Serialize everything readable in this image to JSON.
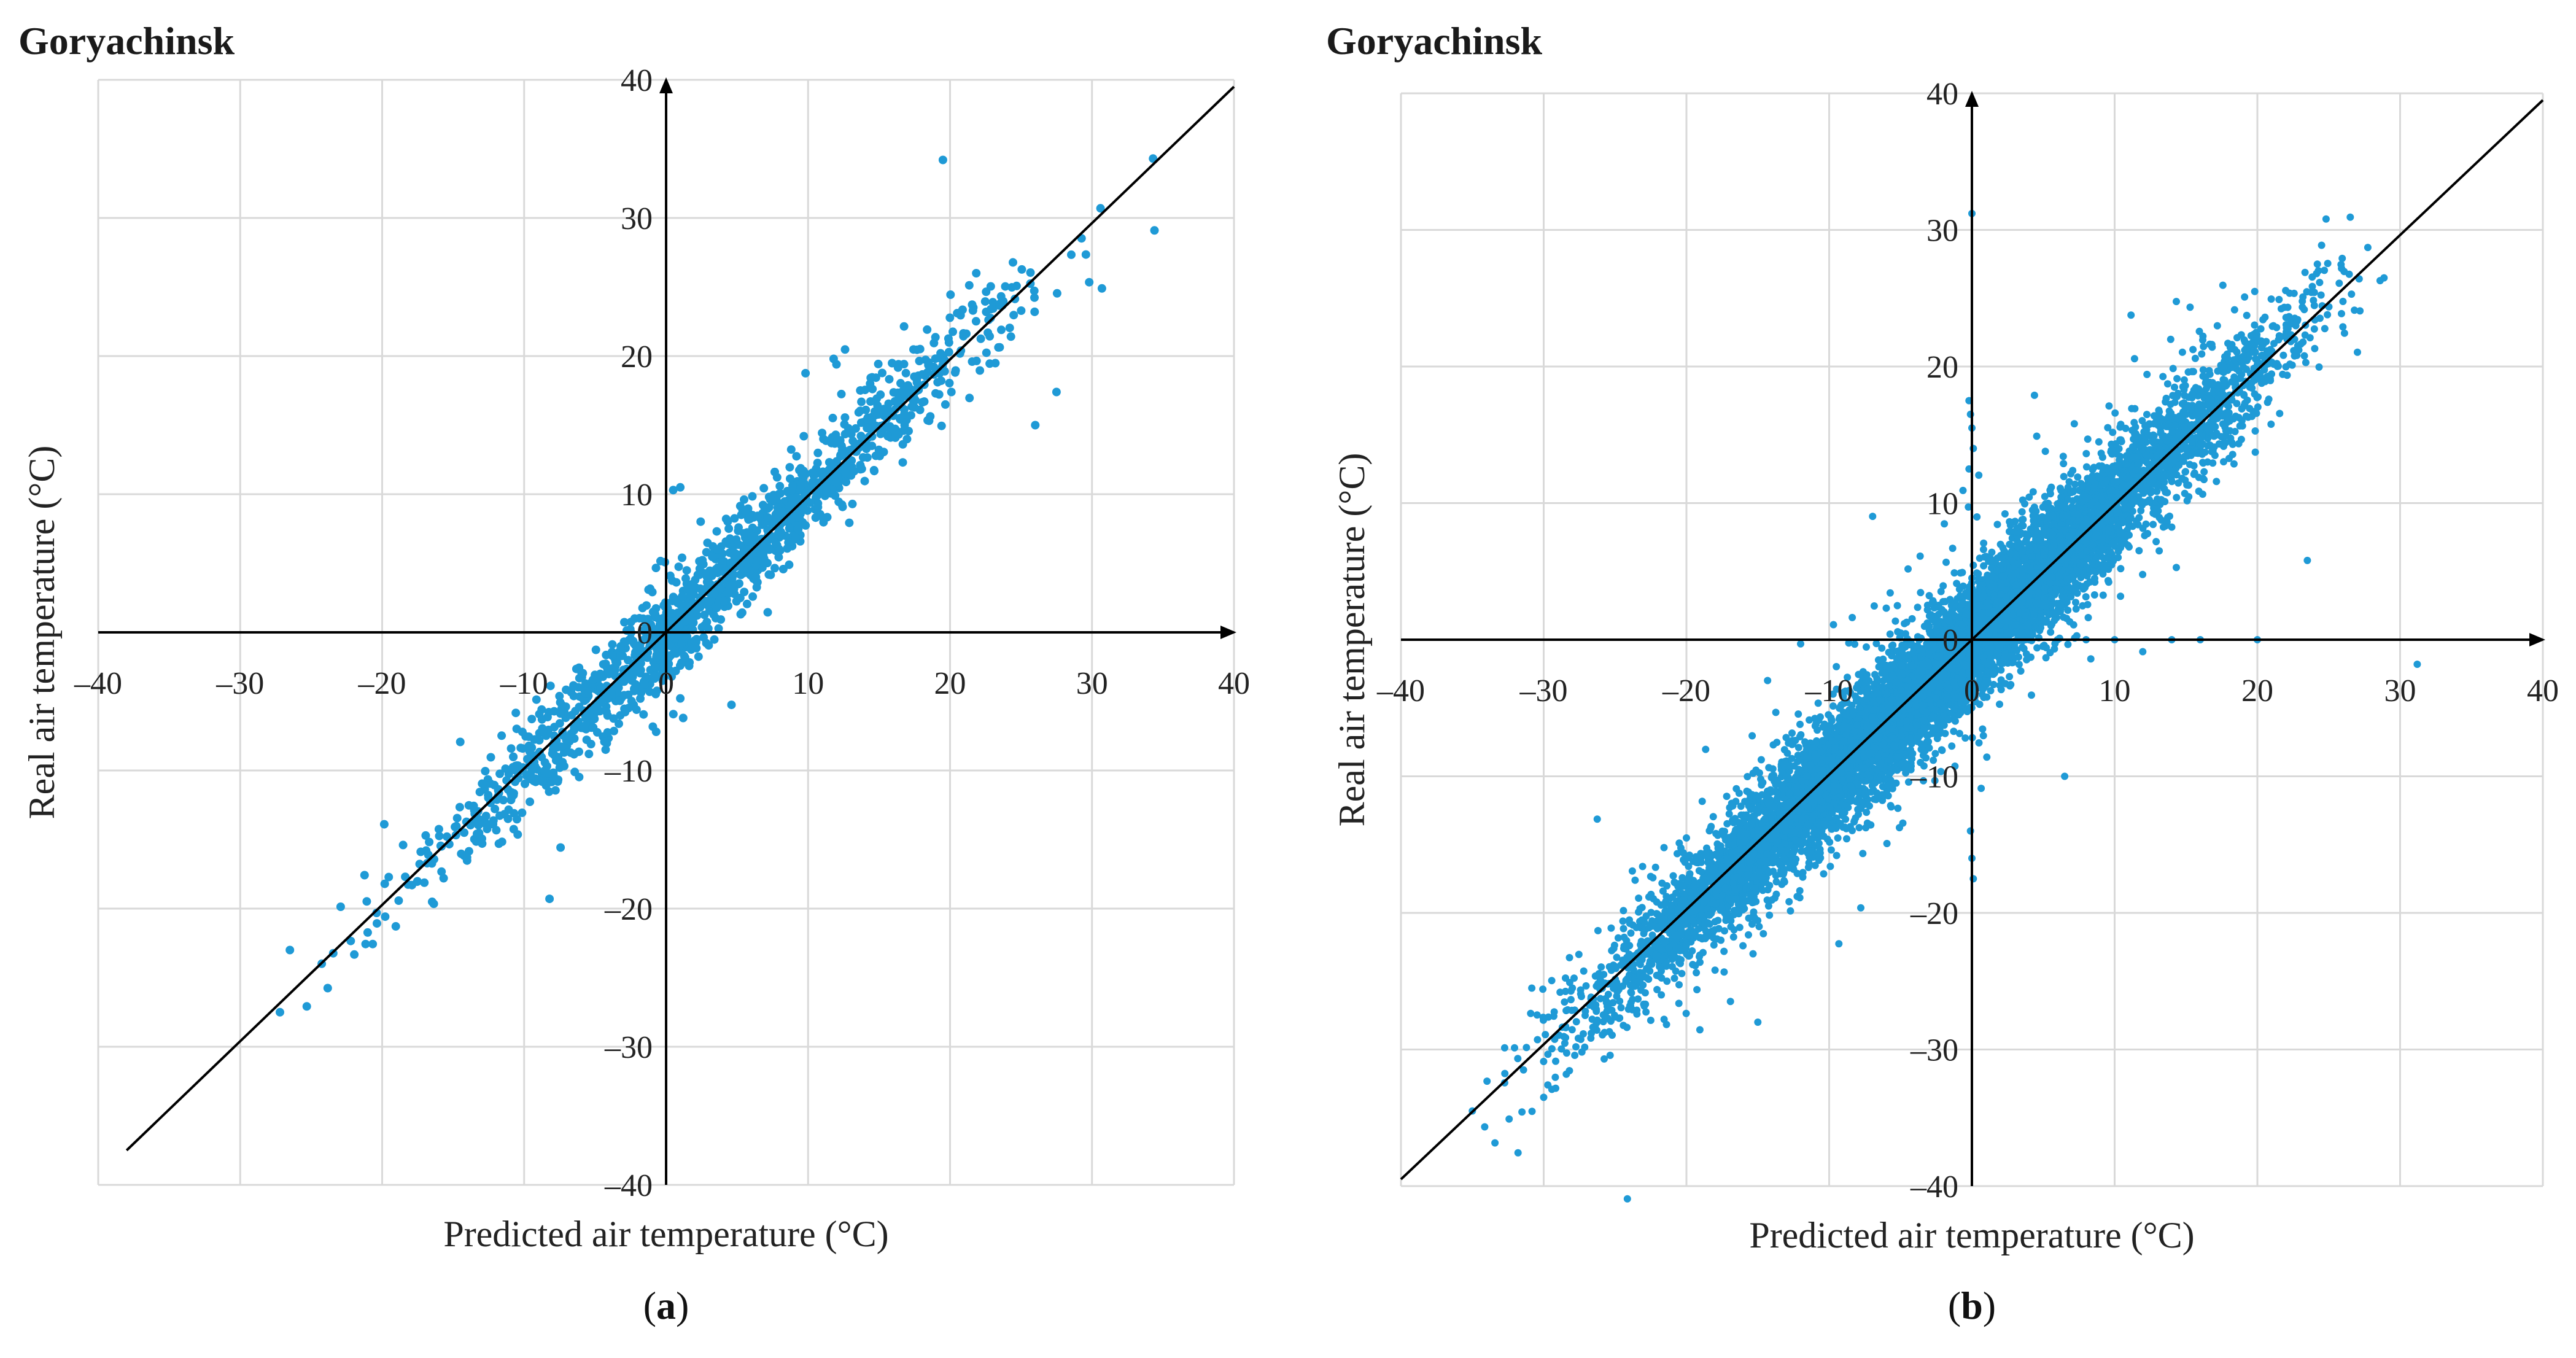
{
  "colors": {
    "point": "#1f9ad6",
    "grid": "#d9d9d9",
    "axis": "#000000",
    "text": "#222222"
  },
  "chart_data": [
    {
      "type": "scatter",
      "title": "Goryachinsk",
      "caption_letter": "a",
      "xlabel": "Predicted air temperature (°C)",
      "ylabel": "Real air temperature (°C)",
      "xlim": [
        -40,
        40
      ],
      "ylim": [
        -40,
        40
      ],
      "ticks": [
        -40,
        -30,
        -20,
        -10,
        0,
        10,
        20,
        30,
        40
      ],
      "tick_labels": [
        "–40",
        "–30",
        "–20",
        "–10",
        "0",
        "10",
        "20",
        "30",
        "40"
      ],
      "grid": true,
      "reference_line": {
        "x": [
          -38,
          40
        ],
        "y": [
          -37.5,
          39.5
        ]
      },
      "series": [
        {
          "name": "observations",
          "n": 1500,
          "x_range": [
            -27,
            34
          ],
          "residual_sd": 1.7,
          "seed": 7,
          "outliers": [
            [
              19.5,
              34.2
            ],
            [
              34.3,
              34.3
            ],
            [
              34.4,
              29.1
            ],
            [
              30.6,
              30.7
            ],
            [
              27.5,
              17.4
            ],
            [
              26,
              15
            ],
            [
              30.7,
              24.9
            ],
            [
              -27.2,
              -27.5
            ],
            [
              -26.5,
              -23
            ],
            [
              0.5,
              10.3
            ],
            [
              1,
              10.5
            ],
            [
              -0.7,
              -7.2
            ],
            [
              1.2,
              -6.2
            ],
            [
              11.8,
              19.8
            ],
            [
              12,
              19.4
            ]
          ]
        }
      ]
    },
    {
      "type": "scatter",
      "title": "Goryachinsk",
      "caption_letter": "b",
      "xlabel": "Predicted air temperature (°C)",
      "ylabel": "Real air temperature (°C)",
      "xlim": [
        -40,
        40
      ],
      "ylim": [
        -40,
        40
      ],
      "ticks": [
        -40,
        -30,
        -20,
        -10,
        0,
        10,
        20,
        30,
        40
      ],
      "tick_labels": [
        "–40",
        "–30",
        "–20",
        "–10",
        "0",
        "10",
        "20",
        "30",
        "40"
      ],
      "grid": true,
      "reference_line": {
        "x": [
          -40,
          40
        ],
        "y": [
          -39.5,
          39.5
        ]
      },
      "series": [
        {
          "name": "observations",
          "n": 9000,
          "x_range": [
            -35,
            30
          ],
          "residual_sd": 2.2,
          "seed": 11,
          "outliers": [
            [
              0,
              31.2
            ],
            [
              -0.2,
              17.5
            ],
            [
              -0.1,
              16.5
            ],
            [
              0,
              15.5
            ],
            [
              0.1,
              14
            ],
            [
              -0.2,
              12.5
            ],
            [
              -0.1,
              -14
            ],
            [
              0,
              -16
            ],
            [
              0.1,
              -17.5
            ],
            [
              4,
              0
            ],
            [
              6,
              0
            ],
            [
              8,
              0
            ],
            [
              10,
              0
            ],
            [
              14,
              0
            ],
            [
              16,
              0
            ],
            [
              20,
              0
            ],
            [
              31.2,
              -1.8
            ],
            [
              -15,
              -28
            ],
            [
              -30,
              -33.5
            ],
            [
              23.5,
              5.8
            ],
            [
              -35,
              -34.5
            ],
            [
              6.5,
              -10
            ],
            [
              -9.7,
              1.1
            ]
          ]
        }
      ]
    }
  ]
}
